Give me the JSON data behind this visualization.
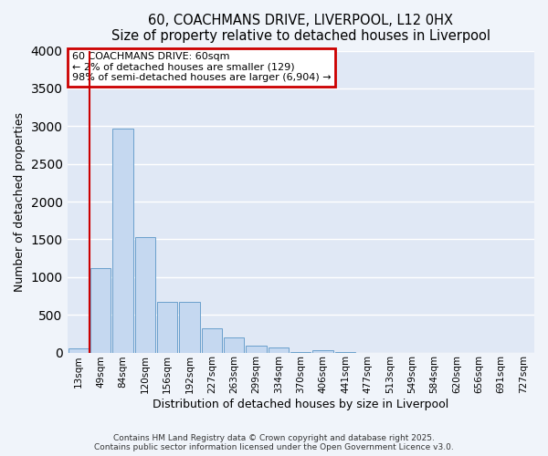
{
  "title": "60, COACHMANS DRIVE, LIVERPOOL, L12 0HX",
  "subtitle": "Size of property relative to detached houses in Liverpool",
  "xlabel": "Distribution of detached houses by size in Liverpool",
  "ylabel": "Number of detached properties",
  "bar_labels": [
    "13sqm",
    "49sqm",
    "84sqm",
    "120sqm",
    "156sqm",
    "192sqm",
    "227sqm",
    "263sqm",
    "299sqm",
    "334sqm",
    "370sqm",
    "406sqm",
    "441sqm",
    "477sqm",
    "513sqm",
    "549sqm",
    "584sqm",
    "620sqm",
    "656sqm",
    "691sqm",
    "727sqm"
  ],
  "bar_values": [
    50,
    1120,
    2970,
    1530,
    670,
    670,
    320,
    205,
    95,
    70,
    5,
    30,
    5,
    0,
    0,
    0,
    0,
    0,
    0,
    0,
    0
  ],
  "bar_color": "#c5d8f0",
  "bar_edgecolor": "#6aa0cc",
  "vline_x": 0.5,
  "vline_color": "#cc0000",
  "ylim": [
    0,
    4000
  ],
  "yticks": [
    0,
    500,
    1000,
    1500,
    2000,
    2500,
    3000,
    3500,
    4000
  ],
  "annotation_title": "60 COACHMANS DRIVE: 60sqm",
  "annotation_line2": "← 2% of detached houses are smaller (129)",
  "annotation_line3": "98% of semi-detached houses are larger (6,904) →",
  "annotation_box_color": "#cc0000",
  "footer1": "Contains HM Land Registry data © Crown copyright and database right 2025.",
  "footer2": "Contains public sector information licensed under the Open Government Licence v3.0.",
  "bg_color": "#f0f4fa",
  "plot_bg_color": "#e0e8f5"
}
